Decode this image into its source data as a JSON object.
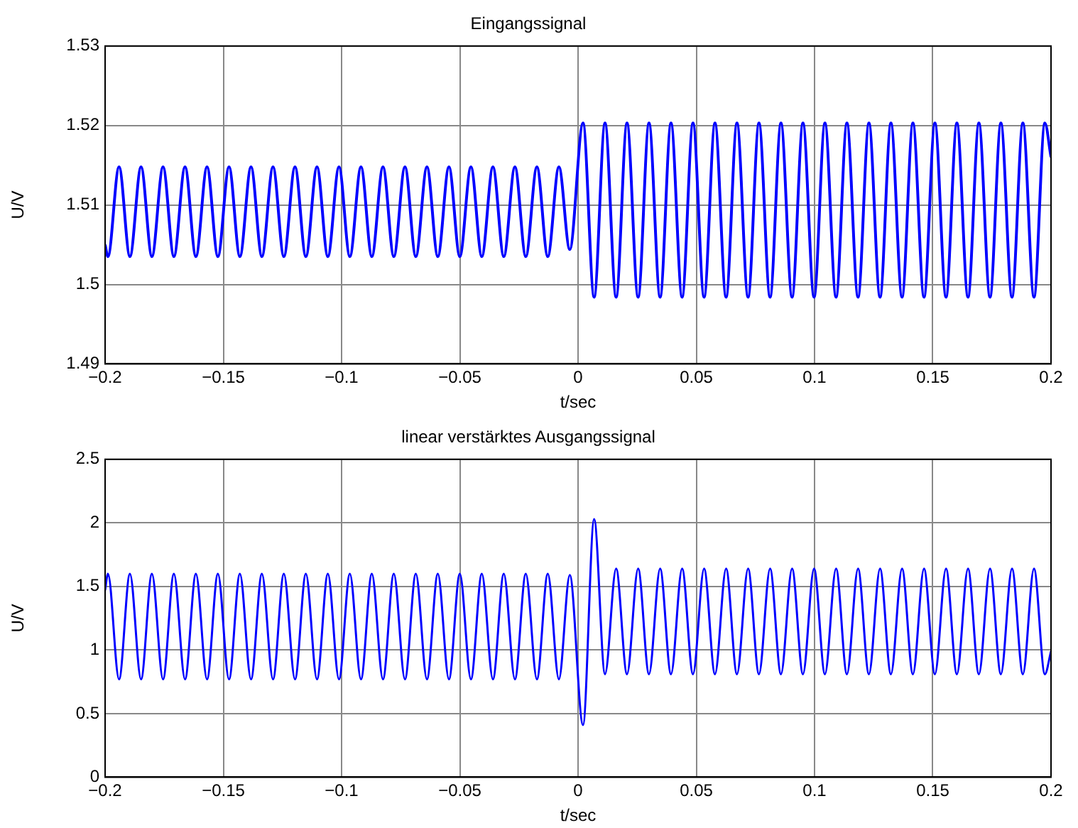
{
  "chart_data": [
    {
      "type": "line",
      "title": "Eingangssignal",
      "xlabel": "t/sec",
      "ylabel": "U/V",
      "xlim": [
        -0.2,
        0.2
      ],
      "xticks": [
        -0.2,
        -0.15,
        -0.1,
        -0.05,
        0,
        0.05,
        0.1,
        0.15,
        0.2
      ],
      "ylim": [
        1.49,
        1.53
      ],
      "yticks": [
        1.49,
        1.5,
        1.51,
        1.52,
        1.53
      ],
      "grid": true,
      "line_style": "solid",
      "marker": "none",
      "x": [
        -0.2,
        -0.1988,
        -0.1941,
        -0.1895,
        -0.1848,
        -0.1802,
        -0.1755,
        -0.1709,
        -0.1662,
        -0.1616,
        -0.1569,
        -0.1523,
        -0.1476,
        -0.143,
        -0.1383,
        -0.1337,
        -0.129,
        -0.1244,
        -0.1197,
        -0.1151,
        -0.1104,
        -0.1058,
        -0.1011,
        -0.0965,
        -0.0918,
        -0.0872,
        -0.0825,
        -0.0779,
        -0.0732,
        -0.0686,
        -0.0639,
        -0.0593,
        -0.0546,
        -0.05,
        -0.0453,
        -0.0407,
        -0.036,
        -0.0314,
        -0.0267,
        -0.0221,
        -0.0174,
        -0.0128,
        -0.0081,
        -0.0035,
        0.0021,
        0.0068,
        0.0114,
        0.0161,
        0.0207,
        0.0254,
        0.03,
        0.0347,
        0.0393,
        0.044,
        0.0486,
        0.0533,
        0.0579,
        0.0626,
        0.0672,
        0.0719,
        0.0765,
        0.0812,
        0.0858,
        0.0905,
        0.0951,
        0.0998,
        0.1044,
        0.1091,
        0.1137,
        0.1184,
        0.123,
        0.1277,
        0.1323,
        0.137,
        0.1416,
        0.1463,
        0.1509,
        0.1556,
        0.1602,
        0.1649,
        0.1695,
        0.1742,
        0.1788,
        0.1835,
        0.1881,
        0.1928,
        0.1974,
        0.2
      ],
      "series": [
        {
          "color": "#0000ff",
          "values": [
            1.505,
            1.5035,
            1.5148,
            1.5035,
            1.5148,
            1.5035,
            1.5148,
            1.5035,
            1.5148,
            1.5035,
            1.5148,
            1.5035,
            1.5148,
            1.5035,
            1.5148,
            1.5035,
            1.5148,
            1.5035,
            1.5148,
            1.5035,
            1.5148,
            1.5035,
            1.5148,
            1.5035,
            1.5148,
            1.5035,
            1.5148,
            1.5035,
            1.5148,
            1.5035,
            1.5148,
            1.5035,
            1.5148,
            1.5035,
            1.5148,
            1.5035,
            1.5148,
            1.5035,
            1.5148,
            1.5035,
            1.5148,
            1.5035,
            1.5148,
            1.5044,
            1.5203,
            1.4984,
            1.5203,
            1.4984,
            1.5203,
            1.4984,
            1.5203,
            1.4984,
            1.5203,
            1.4984,
            1.5203,
            1.4984,
            1.5203,
            1.4984,
            1.5203,
            1.4984,
            1.5203,
            1.4984,
            1.5203,
            1.4984,
            1.5203,
            1.4984,
            1.5203,
            1.4984,
            1.5203,
            1.4984,
            1.5203,
            1.4984,
            1.5203,
            1.4984,
            1.5203,
            1.4984,
            1.5203,
            1.4984,
            1.5203,
            1.4984,
            1.5203,
            1.4984,
            1.5203,
            1.4984,
            1.5203,
            1.4984,
            1.5203,
            1.516
          ]
        }
      ]
    },
    {
      "type": "line",
      "title": "linear verstärktes Ausgangssignal",
      "xlabel": "t/sec",
      "ylabel": "U/V",
      "xlim": [
        -0.2,
        0.2
      ],
      "xticks": [
        -0.2,
        -0.15,
        -0.1,
        -0.05,
        0,
        0.05,
        0.1,
        0.15,
        0.2
      ],
      "ylim": [
        0,
        2.5
      ],
      "yticks": [
        0,
        0.5,
        1,
        1.5,
        2,
        2.5
      ],
      "grid": true,
      "line_style": "solid",
      "marker": "none",
      "x": [
        -0.2,
        -0.1988,
        -0.1941,
        -0.1895,
        -0.1848,
        -0.1802,
        -0.1755,
        -0.1709,
        -0.1662,
        -0.1616,
        -0.1569,
        -0.1523,
        -0.1476,
        -0.143,
        -0.1383,
        -0.1337,
        -0.129,
        -0.1244,
        -0.1197,
        -0.1151,
        -0.1104,
        -0.1058,
        -0.1011,
        -0.0965,
        -0.0918,
        -0.0872,
        -0.0825,
        -0.0779,
        -0.0732,
        -0.0686,
        -0.0639,
        -0.0593,
        -0.0546,
        -0.05,
        -0.0453,
        -0.0407,
        -0.036,
        -0.0314,
        -0.0267,
        -0.0221,
        -0.0174,
        -0.0128,
        -0.0081,
        -0.0035,
        0.0021,
        0.0068,
        0.0114,
        0.0161,
        0.0207,
        0.0254,
        0.03,
        0.0347,
        0.0393,
        0.044,
        0.0486,
        0.0533,
        0.0579,
        0.0626,
        0.0672,
        0.0719,
        0.0765,
        0.0812,
        0.0858,
        0.0905,
        0.0951,
        0.0998,
        0.1044,
        0.1091,
        0.1137,
        0.1184,
        0.123,
        0.1277,
        0.1323,
        0.137,
        0.1416,
        0.1463,
        0.1509,
        0.1556,
        0.1602,
        0.1649,
        0.1695,
        0.1742,
        0.1788,
        0.1835,
        0.1881,
        0.1928,
        0.1974,
        0.2
      ],
      "series": [
        {
          "color": "#0000ff",
          "values": [
            1.47,
            1.6,
            0.77,
            1.6,
            0.77,
            1.6,
            0.77,
            1.6,
            0.77,
            1.6,
            0.77,
            1.6,
            0.77,
            1.6,
            0.77,
            1.6,
            0.77,
            1.6,
            0.77,
            1.6,
            0.77,
            1.6,
            0.77,
            1.6,
            0.77,
            1.6,
            0.77,
            1.6,
            0.77,
            1.6,
            0.77,
            1.6,
            0.77,
            1.6,
            0.77,
            1.6,
            0.77,
            1.6,
            0.77,
            1.6,
            0.77,
            1.6,
            0.77,
            1.59,
            0.41,
            2.03,
            0.81,
            1.64,
            0.81,
            1.64,
            0.81,
            1.64,
            0.81,
            1.64,
            0.81,
            1.64,
            0.81,
            1.64,
            0.81,
            1.64,
            0.81,
            1.64,
            0.81,
            1.64,
            0.81,
            1.64,
            0.81,
            1.64,
            0.81,
            1.64,
            0.81,
            1.64,
            0.81,
            1.64,
            0.81,
            1.64,
            0.81,
            1.64,
            0.81,
            1.64,
            0.81,
            1.64,
            0.81,
            1.64,
            0.81,
            1.64,
            0.81,
            0.99
          ]
        }
      ]
    }
  ]
}
